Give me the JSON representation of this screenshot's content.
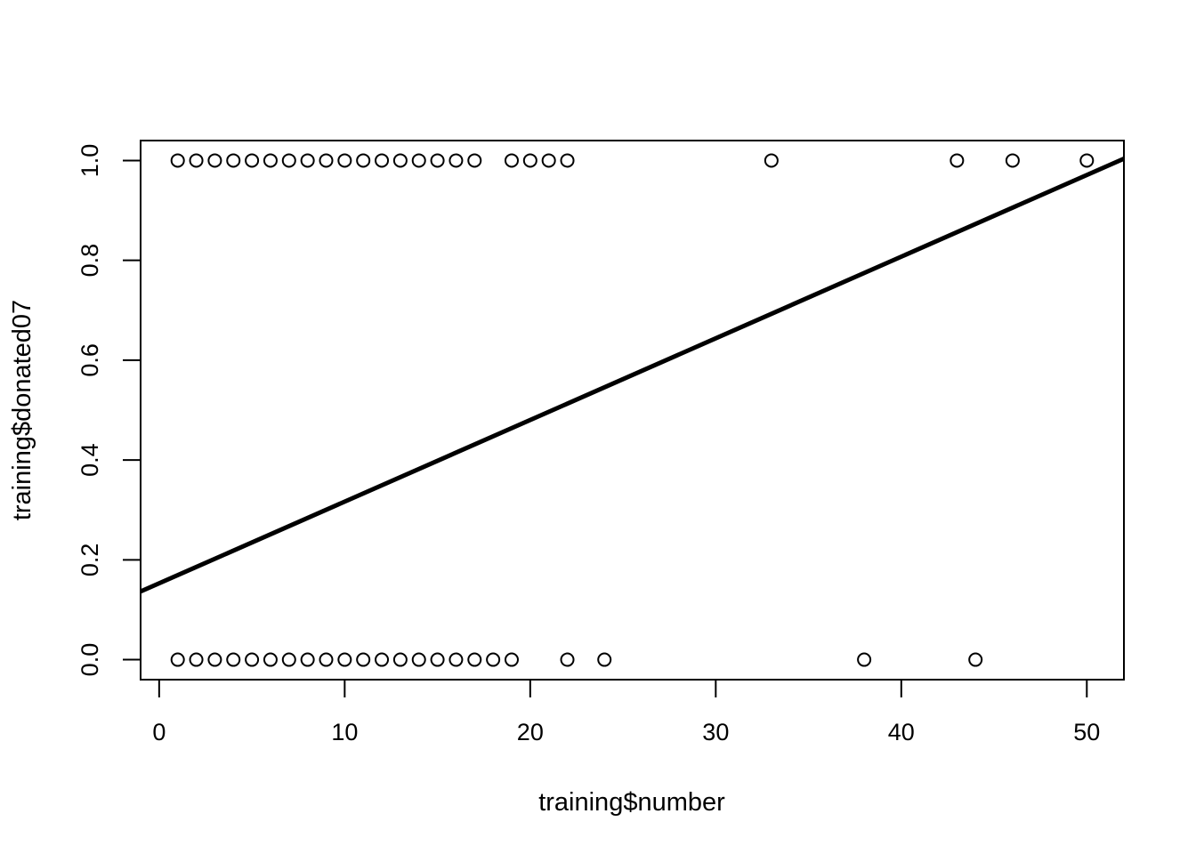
{
  "chart_data": {
    "type": "scatter",
    "title": "",
    "xlabel": "training$number",
    "ylabel": "training$donated07",
    "xlim": [
      -1,
      52
    ],
    "ylim": [
      -0.04,
      1.04
    ],
    "xticks": [
      0,
      10,
      20,
      30,
      40,
      50
    ],
    "xtick_labels": [
      "0",
      "10",
      "20",
      "30",
      "40",
      "50"
    ],
    "yticks": [
      0.0,
      0.2,
      0.4,
      0.6,
      0.8,
      1.0
    ],
    "ytick_labels": [
      "0.0",
      "0.2",
      "0.4",
      "0.6",
      "0.8",
      "1.0"
    ],
    "grid": false,
    "legend": "none",
    "marker": "open-circle",
    "series": [
      {
        "points": [
          {
            "x": 1,
            "y": 1
          },
          {
            "x": 2,
            "y": 1
          },
          {
            "x": 3,
            "y": 1
          },
          {
            "x": 4,
            "y": 1
          },
          {
            "x": 5,
            "y": 1
          },
          {
            "x": 6,
            "y": 1
          },
          {
            "x": 7,
            "y": 1
          },
          {
            "x": 8,
            "y": 1
          },
          {
            "x": 9,
            "y": 1
          },
          {
            "x": 10,
            "y": 1
          },
          {
            "x": 11,
            "y": 1
          },
          {
            "x": 12,
            "y": 1
          },
          {
            "x": 13,
            "y": 1
          },
          {
            "x": 14,
            "y": 1
          },
          {
            "x": 15,
            "y": 1
          },
          {
            "x": 16,
            "y": 1
          },
          {
            "x": 17,
            "y": 1
          },
          {
            "x": 19,
            "y": 1
          },
          {
            "x": 20,
            "y": 1
          },
          {
            "x": 21,
            "y": 1
          },
          {
            "x": 22,
            "y": 1
          },
          {
            "x": 33,
            "y": 1
          },
          {
            "x": 43,
            "y": 1
          },
          {
            "x": 46,
            "y": 1
          },
          {
            "x": 50,
            "y": 1
          },
          {
            "x": 1,
            "y": 0
          },
          {
            "x": 2,
            "y": 0
          },
          {
            "x": 3,
            "y": 0
          },
          {
            "x": 4,
            "y": 0
          },
          {
            "x": 5,
            "y": 0
          },
          {
            "x": 6,
            "y": 0
          },
          {
            "x": 7,
            "y": 0
          },
          {
            "x": 8,
            "y": 0
          },
          {
            "x": 9,
            "y": 0
          },
          {
            "x": 10,
            "y": 0
          },
          {
            "x": 11,
            "y": 0
          },
          {
            "x": 12,
            "y": 0
          },
          {
            "x": 13,
            "y": 0
          },
          {
            "x": 14,
            "y": 0
          },
          {
            "x": 15,
            "y": 0
          },
          {
            "x": 16,
            "y": 0
          },
          {
            "x": 17,
            "y": 0
          },
          {
            "x": 18,
            "y": 0
          },
          {
            "x": 19,
            "y": 0
          },
          {
            "x": 22,
            "y": 0
          },
          {
            "x": 24,
            "y": 0
          },
          {
            "x": 38,
            "y": 0
          },
          {
            "x": 44,
            "y": 0
          }
        ]
      }
    ],
    "fit_line": {
      "intercept": 0.153,
      "slope": 0.01636
    },
    "colors": {
      "marks": "#000000",
      "background": "#ffffff"
    }
  }
}
